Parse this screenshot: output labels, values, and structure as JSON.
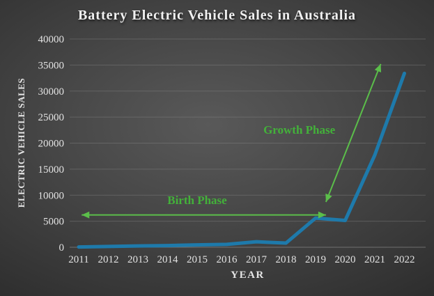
{
  "title": "Battery Electric Vehicle Sales in Australia",
  "colors": {
    "background_center": "#595959",
    "background_edge": "#1d1d1d",
    "line": "#1e7aab",
    "annotation_arrow": "#5bbe4a",
    "annotation_text": "#43b13a",
    "grid": "#8f8f8f",
    "axis_text": "#e3e3e3",
    "title_text": "#f1f1f1"
  },
  "chart_data": {
    "type": "line",
    "title": "Battery Electric Vehicle Sales in Australia",
    "xlabel": "YEAR",
    "ylabel": "ELECTRIC VEHICLE SALES",
    "series_name": "Battery electric vehicle sales",
    "x": [
      2011,
      2012,
      2013,
      2014,
      2015,
      2016,
      2017,
      2018,
      2019,
      2020,
      2021,
      2022
    ],
    "values": [
      50,
      150,
      250,
      320,
      450,
      550,
      1050,
      800,
      5600,
      5150,
      17700,
      33400
    ],
    "ylim": [
      0,
      40000
    ],
    "ytick_step": 5000,
    "yticks": [
      0,
      5000,
      10000,
      15000,
      20000,
      25000,
      30000,
      35000,
      40000
    ],
    "grid": true,
    "legend": "none",
    "line_width": 5,
    "annotations": [
      {
        "label": "Birth Phase",
        "type": "double-headed-arrow",
        "x1": 2011.1,
        "y1": 6200,
        "x2": 2019.35,
        "y2": 6200,
        "label_x": 2015.0,
        "label_y": 8300
      },
      {
        "label": "Growth Phase",
        "type": "double-headed-arrow",
        "x1": 2019.35,
        "y1": 8700,
        "x2": 2021.2,
        "y2": 35200,
        "label_x": 2018.45,
        "label_y": 21800
      }
    ]
  }
}
